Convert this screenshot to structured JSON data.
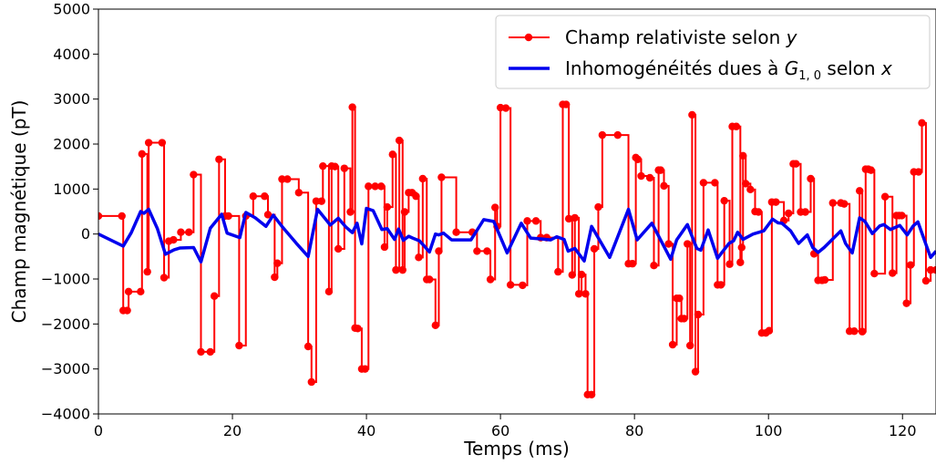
{
  "chart_data": {
    "type": "line",
    "xlabel": "Temps (ms)",
    "ylabel": "Champ magnétique (pT)",
    "xlim": [
      0,
      125
    ],
    "ylim": [
      -4000,
      5000
    ],
    "x_ticks": [
      0,
      20,
      40,
      60,
      80,
      100,
      120
    ],
    "x_tick_labels": [
      "0",
      "20",
      "40",
      "60",
      "80",
      "100",
      "120"
    ],
    "y_ticks": [
      -4000,
      -3000,
      -2000,
      -1000,
      0,
      1000,
      2000,
      3000,
      4000,
      5000
    ],
    "y_tick_labels": [
      "−4000",
      "−3000",
      "−2000",
      "−1000",
      "0",
      "1000",
      "2000",
      "3000",
      "4000",
      "5000"
    ],
    "grid": false,
    "legend_position": "top-right",
    "series": [
      {
        "name": "Champ relativiste selon y",
        "legend_label": {
          "main": "Champ relativiste selon ",
          "var": "y"
        },
        "color": "#ff0000",
        "marker": "circle",
        "drawstyle": "steps-post",
        "x": [
          0,
          3.5,
          3.7,
          4.3,
          4.5,
          6.3,
          6.5,
          7.3,
          7.5,
          9.5,
          9.8,
          10.5,
          11.2,
          12.3,
          13.5,
          14.2,
          15.3,
          16.7,
          17.3,
          18.0,
          18.9,
          19.4,
          21.0,
          22.0,
          23.1,
          24.8,
          25.3,
          26.3,
          26.7,
          27.4,
          28.2,
          29.9,
          31.3,
          31.8,
          32.5,
          33.3,
          33.5,
          34.4,
          34.8,
          35.3,
          35.8,
          36.7,
          37.6,
          37.9,
          38.3,
          38.7,
          39.3,
          39.8,
          40.3,
          41.3,
          42.2,
          42.7,
          43.1,
          43.9,
          44.4,
          44.9,
          45.4,
          45.7,
          46.3,
          46.8,
          47.4,
          47.8,
          48.4,
          49.0,
          49.4,
          50.3,
          50.8,
          51.2,
          53.4,
          55.8,
          56.5,
          58.0,
          58.5,
          59.2,
          59.5,
          60.0,
          60.8,
          61.5,
          63.3,
          64.0,
          65.3,
          66.0,
          66.9,
          68.6,
          69.3,
          69.8,
          70.2,
          70.7,
          71.1,
          71.7,
          72.1,
          72.7,
          73.0,
          73.6,
          74.0,
          74.6,
          75.2,
          77.5,
          79.1,
          79.7,
          80.2,
          80.5,
          81.0,
          82.3,
          82.9,
          83.6,
          83.9,
          84.4,
          85.1,
          85.7,
          86.3,
          86.7,
          87.0,
          87.4,
          87.9,
          88.3,
          88.6,
          89.1,
          89.5,
          90.3,
          92.0,
          92.4,
          92.9,
          93.4,
          94.2,
          94.6,
          95.2,
          95.8,
          96.0,
          96.2,
          96.6,
          97.3,
          98.0,
          98.5,
          99.0,
          99.6,
          100.1,
          100.5,
          101.1,
          102.3,
          103.0,
          103.7,
          104.1,
          104.8,
          105.5,
          106.3,
          106.8,
          107.4,
          108.0,
          108.4,
          109.6,
          110.8,
          111.3,
          112.1,
          112.8,
          113.6,
          114.0,
          114.5,
          114.9,
          115.3,
          115.8,
          117.4,
          118.5,
          119.1,
          119.5,
          119.9,
          120.6,
          121.2,
          121.7,
          122.4,
          122.9,
          123.5,
          124.2,
          125.0
        ],
        "y": [
          400,
          400,
          -1700,
          -1700,
          -1280,
          -1280,
          1780,
          -840,
          2030,
          2030,
          -970,
          -160,
          -130,
          40,
          40,
          1320,
          -2620,
          -2620,
          -1380,
          1660,
          400,
          400,
          -2480,
          400,
          840,
          840,
          430,
          -960,
          -650,
          1220,
          1220,
          920,
          -2500,
          -3290,
          730,
          730,
          1510,
          -1280,
          1510,
          1500,
          -330,
          1460,
          490,
          2820,
          -2090,
          -2100,
          -3000,
          -3000,
          1060,
          1060,
          1060,
          -290,
          600,
          1770,
          -800,
          2080,
          -800,
          490,
          920,
          920,
          840,
          -520,
          1230,
          -1010,
          -1010,
          -2030,
          -380,
          1260,
          40,
          40,
          -380,
          -380,
          -1010,
          590,
          170,
          2810,
          2800,
          -1130,
          -1140,
          290,
          290,
          -80,
          -80,
          -840,
          2880,
          2880,
          340,
          -910,
          360,
          -1330,
          -900,
          -1330,
          -3570,
          -3570,
          -330,
          600,
          2200,
          2200,
          -660,
          -660,
          1700,
          1660,
          1290,
          1250,
          -700,
          1420,
          1420,
          1070,
          -220,
          -2460,
          -1430,
          -1430,
          -1880,
          -1880,
          -220,
          -2480,
          2650,
          -3060,
          -1790,
          1140,
          1140,
          -1130,
          -1130,
          740,
          -670,
          2390,
          2390,
          -630,
          -300,
          1740,
          1120,
          990,
          500,
          490,
          -2200,
          -2200,
          -2150,
          710,
          710,
          300,
          460,
          1560,
          1560,
          490,
          490,
          1230,
          -440,
          -1030,
          -1030,
          -1020,
          690,
          690,
          670,
          -2160,
          -2160,
          960,
          -2170,
          1440,
          1440,
          1420,
          -880,
          830,
          -870,
          410,
          410,
          410,
          -1540,
          -690,
          1380,
          1380,
          2470,
          -1040,
          -800,
          -800
        ]
      },
      {
        "name": "Inhomogénéités dues à G1,0 selon x",
        "legend_label": {
          "main": "Inhomogénéités dues à ",
          "var": "G",
          "sub": "1, 0",
          "rest": " selon ",
          "var2": "x"
        },
        "color": "#0000ee",
        "marker": "none",
        "x": [
          0,
          3.7,
          4.9,
          6.3,
          6.8,
          7.5,
          8.8,
          10.0,
          11.3,
          12.2,
          14.2,
          15.3,
          16.7,
          18.4,
          19.2,
          21.1,
          22.0,
          23.4,
          25.0,
          26.1,
          27.5,
          29.5,
          31.3,
          32.7,
          34.6,
          35.8,
          36.9,
          37.9,
          38.6,
          39.3,
          40.0,
          41.0,
          42.3,
          43.1,
          44.2,
          44.8,
          45.5,
          46.3,
          46.9,
          47.4,
          47.9,
          48.7,
          49.4,
          50.3,
          50.8,
          51.5,
          52.7,
          55.6,
          57.5,
          59.0,
          61.0,
          63.1,
          64.5,
          66.2,
          67.5,
          68.4,
          69.5,
          70.1,
          71.1,
          72.5,
          73.6,
          76.3,
          79.1,
          80.4,
          82.6,
          85.4,
          86.3,
          87.9,
          89.3,
          89.9,
          91.0,
          92.4,
          93.1,
          94.1,
          94.8,
          95.4,
          96.2,
          97.7,
          99.3,
          100.6,
          101.4,
          102.0,
          103.3,
          104.5,
          105.8,
          106.6,
          107.4,
          108.3,
          110.8,
          111.5,
          112.5,
          113.6,
          114.4,
          115.5,
          116.6,
          117.2,
          118.2,
          119.6,
          120.7,
          121.6,
          122.3,
          123.4,
          124.2,
          125.0
        ],
        "y": [
          0,
          -270,
          30,
          500,
          460,
          550,
          120,
          -450,
          -350,
          -310,
          -300,
          -620,
          130,
          440,
          20,
          -80,
          480,
          360,
          170,
          420,
          150,
          -200,
          -500,
          550,
          200,
          350,
          160,
          30,
          240,
          -220,
          570,
          520,
          100,
          120,
          -120,
          110,
          -140,
          -50,
          -90,
          -120,
          -150,
          -280,
          -400,
          0,
          -20,
          20,
          -130,
          -130,
          320,
          280,
          -420,
          240,
          -90,
          -110,
          -130,
          -60,
          -120,
          -380,
          -320,
          -600,
          170,
          -520,
          550,
          -130,
          240,
          -560,
          -130,
          210,
          -320,
          -360,
          90,
          -540,
          -400,
          -210,
          -150,
          40,
          -120,
          0,
          70,
          330,
          250,
          240,
          70,
          -210,
          -20,
          -300,
          -410,
          -300,
          70,
          -210,
          -420,
          360,
          280,
          10,
          180,
          210,
          100,
          190,
          -20,
          180,
          270,
          -190,
          -520,
          -380
        ]
      }
    ]
  }
}
